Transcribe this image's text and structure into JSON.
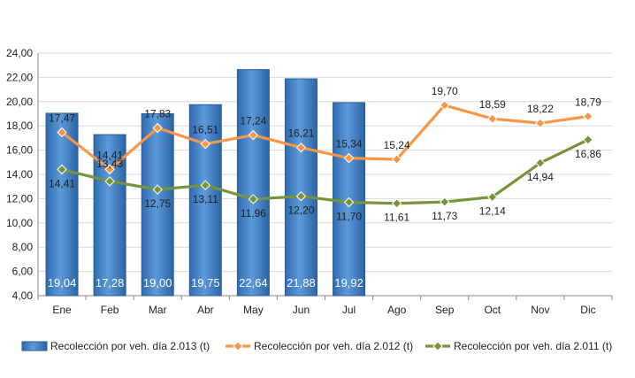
{
  "chart_data": {
    "type": "bar",
    "categories": [
      "Ene",
      "Feb",
      "Mar",
      "Abr",
      "May",
      "Jun",
      "Jul",
      "Ago",
      "Sep",
      "Oct",
      "Nov",
      "Dic"
    ],
    "ylim": [
      4,
      24
    ],
    "yticks": [
      "4,00",
      "6,00",
      "8,00",
      "10,00",
      "12,00",
      "14,00",
      "16,00",
      "18,00",
      "20,00",
      "22,00",
      "24,00"
    ],
    "series": [
      {
        "name": "Recolección por veh. día 2.013 (t)",
        "type": "bar",
        "color": "#4a86c8",
        "values": [
          19.04,
          17.28,
          19.0,
          19.75,
          22.64,
          21.88,
          19.92,
          null,
          null,
          null,
          null,
          null
        ],
        "labels": [
          "19,04",
          "17,28",
          "19,00",
          "19,75",
          "22,64",
          "21,88",
          "19,92",
          "",
          "",
          "",
          "",
          ""
        ]
      },
      {
        "name": "Recolección por veh. día 2.012 (t)",
        "type": "line",
        "color": "#f79646",
        "values": [
          17.47,
          14.41,
          17.83,
          16.51,
          17.24,
          16.21,
          15.34,
          15.24,
          19.7,
          18.59,
          18.22,
          18.79
        ],
        "labels": [
          "17,47",
          "14,41",
          "17,83",
          "16,51",
          "17,24",
          "16,21",
          "15,34",
          "15,24",
          "19,70",
          "18,59",
          "18,22",
          "18,79"
        ]
      },
      {
        "name": "Recolección por veh. día 2.011 (t)",
        "type": "line",
        "color": "#77933c",
        "values": [
          14.41,
          13.43,
          12.75,
          13.11,
          11.96,
          12.2,
          11.7,
          11.61,
          11.73,
          12.14,
          14.94,
          16.86
        ],
        "labels": [
          "14,41",
          "13,43",
          "12,75",
          "13,11",
          "11,96",
          "12,20",
          "11,70",
          "11,61",
          "11,73",
          "12,14",
          "14,94",
          "16,86"
        ]
      }
    ],
    "grid": true,
    "legend_position": "bottom"
  }
}
